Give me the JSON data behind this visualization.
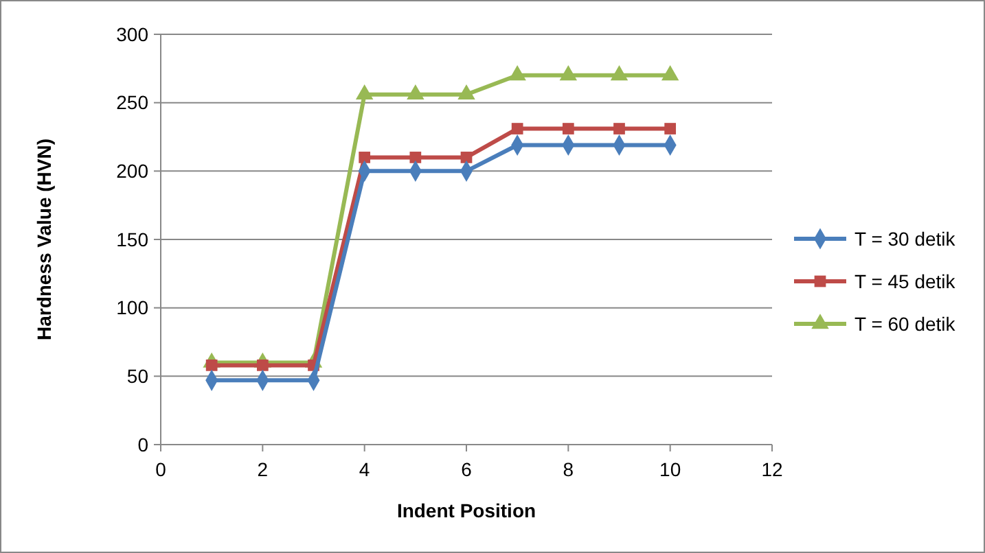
{
  "chart_data": {
    "type": "line",
    "xlabel": "Indent Position",
    "ylabel": "Hardness Value (HVN)",
    "x": [
      1,
      2,
      3,
      4,
      5,
      6,
      7,
      8,
      9,
      10
    ],
    "xlim": [
      0,
      12
    ],
    "xticks": [
      0,
      2,
      4,
      6,
      8,
      10,
      12
    ],
    "ylim": [
      0,
      300
    ],
    "yticks": [
      0,
      50,
      100,
      150,
      200,
      250,
      300
    ],
    "grid": "y",
    "legend": "right",
    "series": [
      {
        "name": "T = 30 detik",
        "color": "#4a7ebb",
        "marker": "diamond",
        "values": [
          47,
          47,
          47,
          200,
          200,
          200,
          219,
          219,
          219,
          219
        ]
      },
      {
        "name": "T = 45 detik",
        "color": "#be4b48",
        "marker": "square",
        "values": [
          58,
          58,
          58,
          210,
          210,
          210,
          231,
          231,
          231,
          231
        ]
      },
      {
        "name": "T = 60 detik",
        "color": "#98b954",
        "marker": "triangle",
        "values": [
          60,
          60,
          60,
          256,
          256,
          256,
          270,
          270,
          270,
          270
        ]
      }
    ]
  }
}
